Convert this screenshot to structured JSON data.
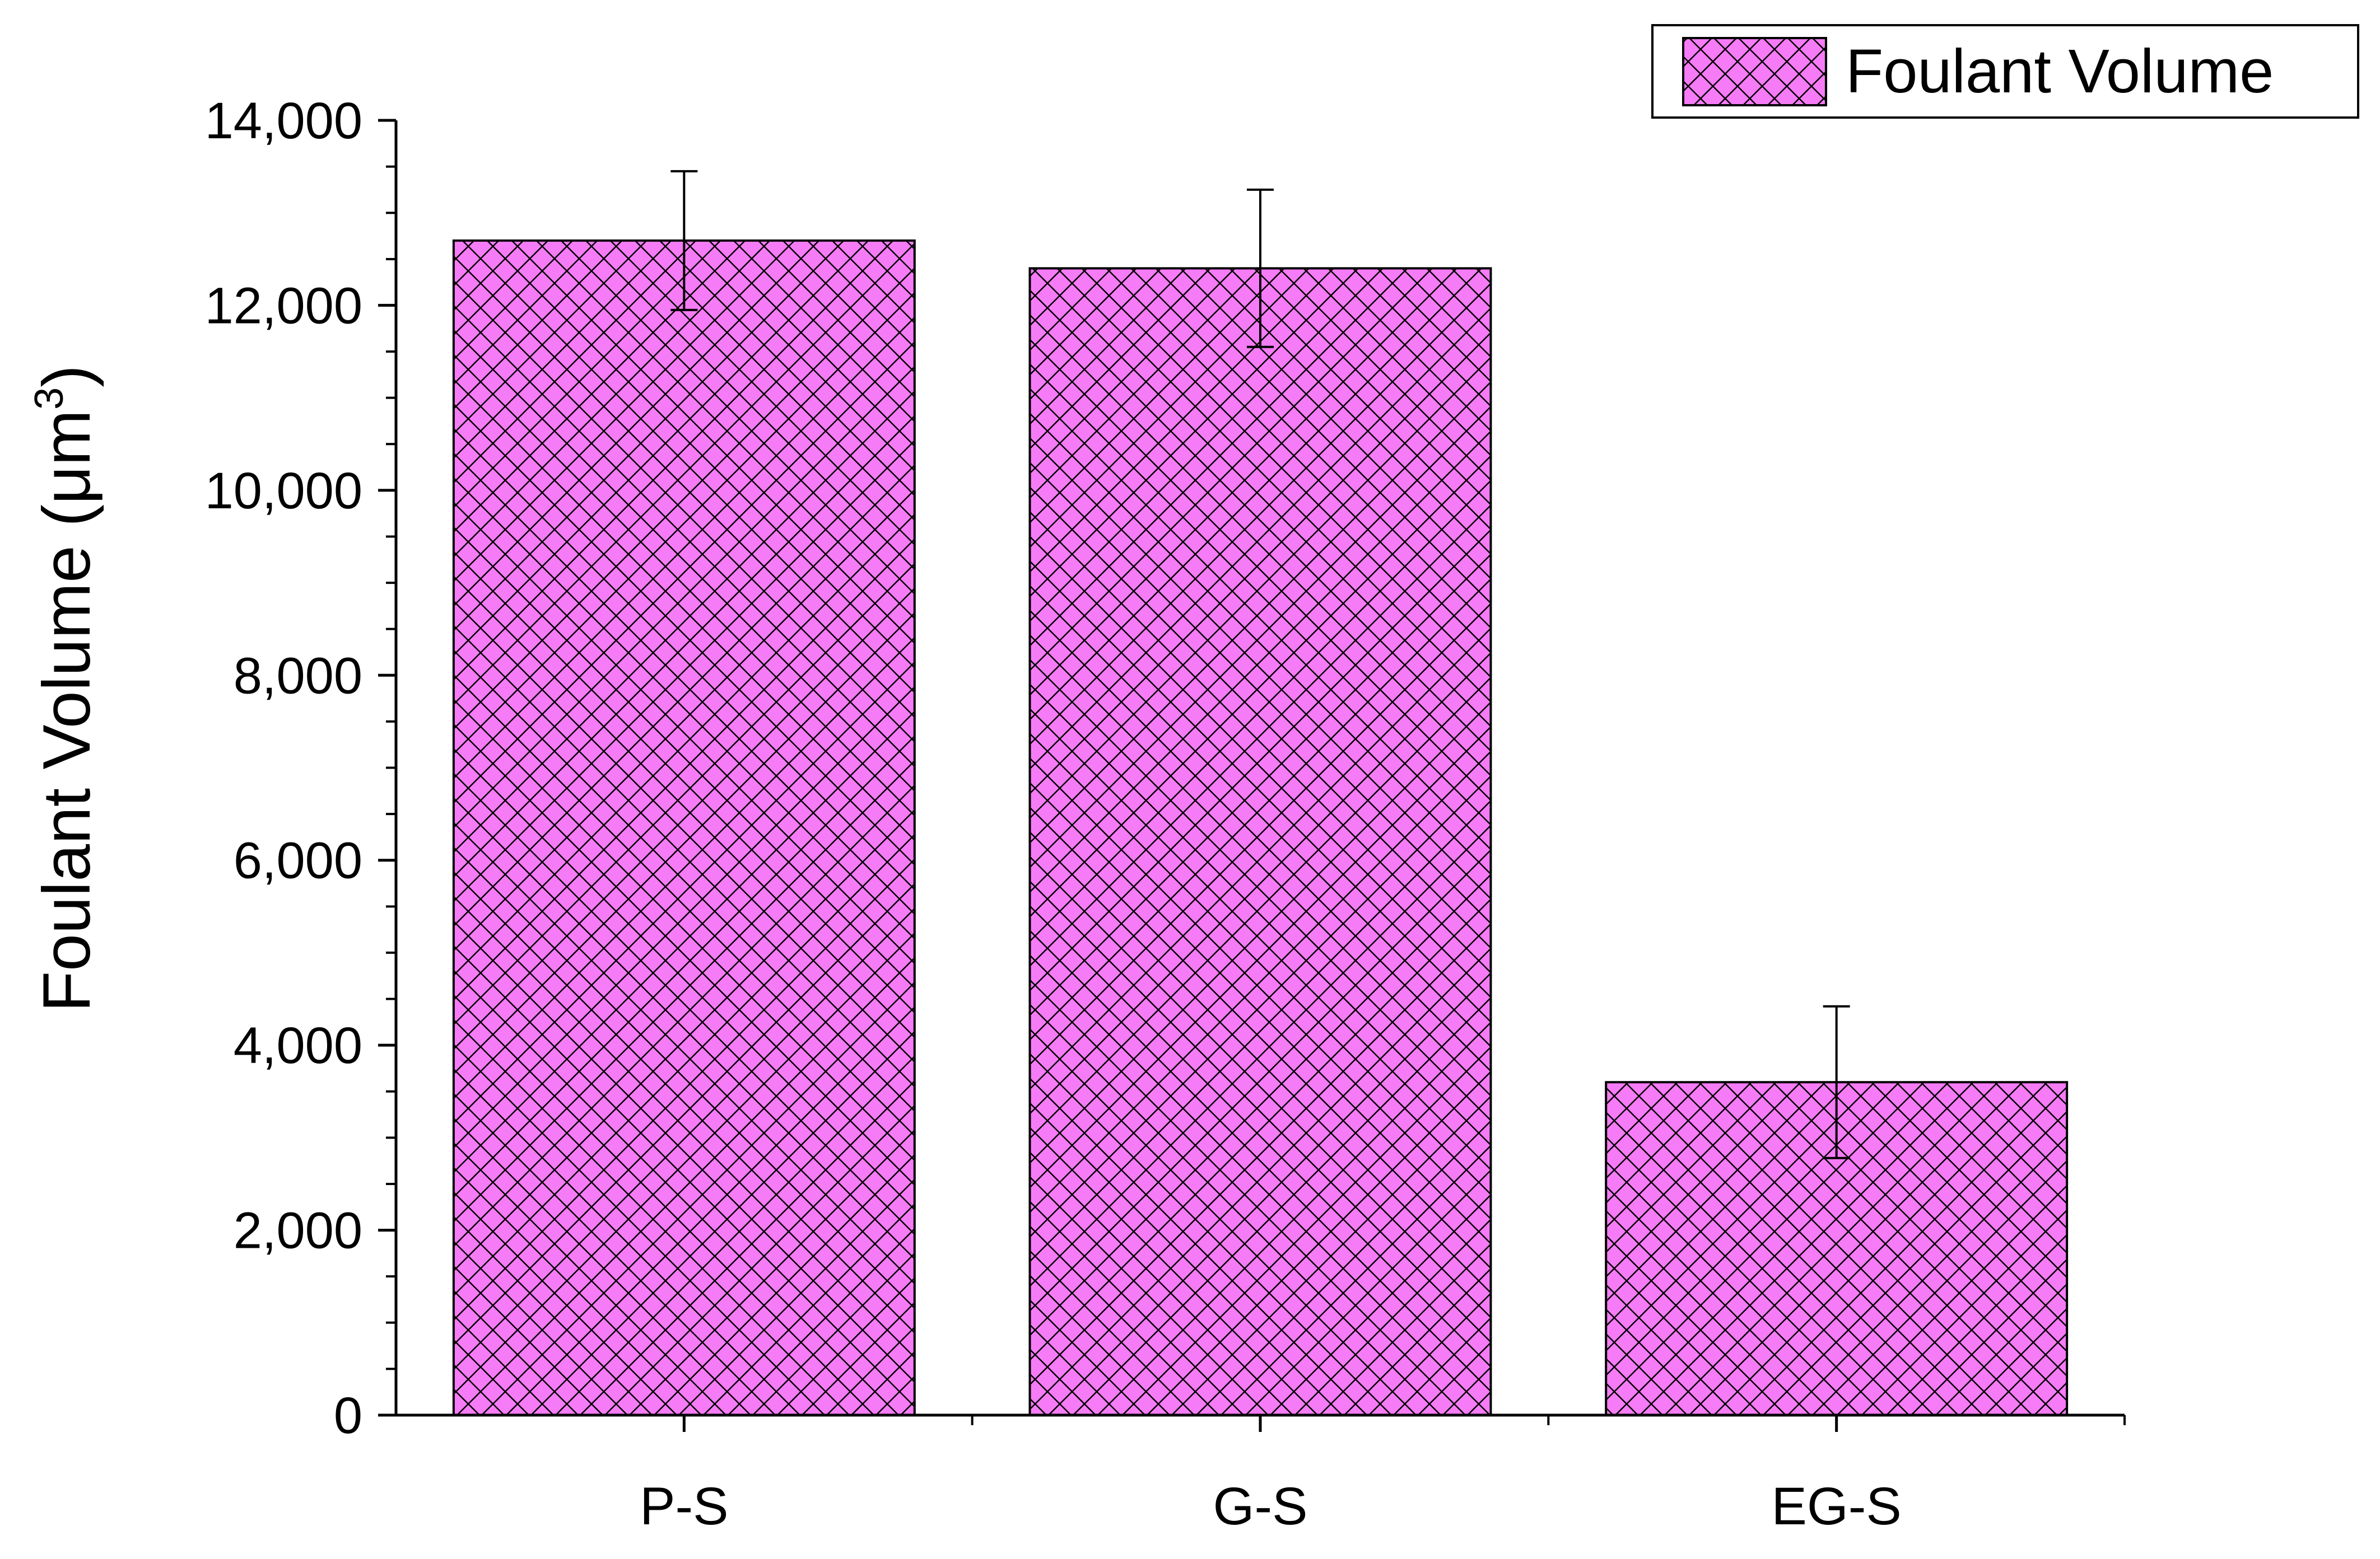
{
  "chart_data": {
    "type": "bar",
    "categories": [
      "P-S",
      "G-S",
      "EG-S"
    ],
    "series": [
      {
        "name": "Foulant Volume",
        "values": [
          12700,
          12400,
          3600
        ],
        "errors": [
          750,
          850,
          820
        ]
      }
    ],
    "ylabel": "Foulant Volume (μm",
    "ylabel_superscript": "3",
    "ylabel_close": ")",
    "ylim": [
      0,
      14000
    ],
    "y_ticks": [
      {
        "value": 0,
        "label": "0"
      },
      {
        "value": 2000,
        "label": "2,000"
      },
      {
        "value": 4000,
        "label": "4,000"
      },
      {
        "value": 6000,
        "label": "6,000"
      },
      {
        "value": 8000,
        "label": "8,000"
      },
      {
        "value": 10000,
        "label": "10,000"
      },
      {
        "value": 12000,
        "label": "12,000"
      },
      {
        "value": 14000,
        "label": "14,000"
      }
    ],
    "minor_tick_step": 500,
    "grid": false,
    "legend": {
      "position": "top-right",
      "entries": [
        "Foulant Volume"
      ]
    },
    "bar_fill": "#f67bf6",
    "bar_hatch": "crosshatch",
    "hatch_color": "#000000"
  }
}
